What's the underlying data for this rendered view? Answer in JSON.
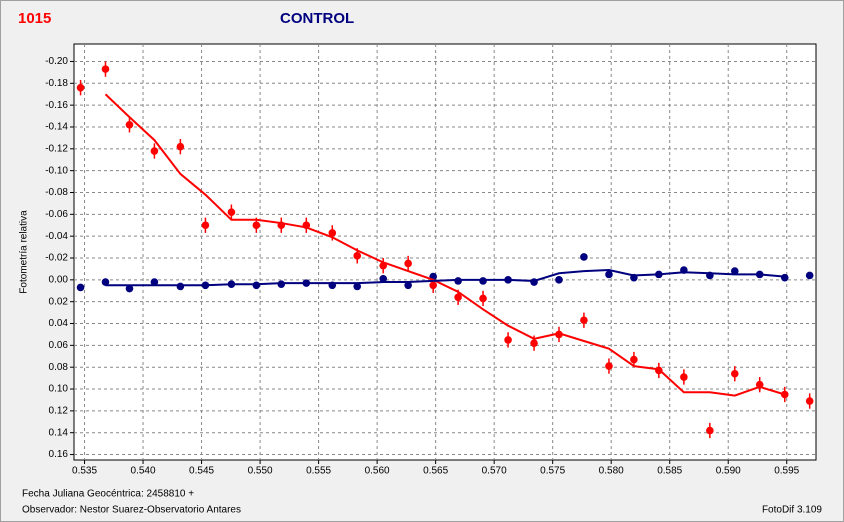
{
  "chart_data": {
    "type": "scatter",
    "title": "CONTROL",
    "id_label": "1015",
    "ylabel": "Fotometría relativa",
    "footer_left_1": "Fecha Juliana Geocéntrica: 2458810 +",
    "footer_left_2": "Observador: Nestor Suarez-Observatorio Antares",
    "footer_right": "FotoDif 3.109",
    "xlim": [
      0.5341,
      0.5975
    ],
    "ylim": [
      0.165,
      -0.216
    ],
    "grid": true,
    "xticks": [
      0.535,
      {
        "value": 0.54,
        "label": "0.540"
      },
      0.545,
      {
        "value": 0.55,
        "label": "0.550"
      },
      0.555,
      {
        "value": 0.56,
        "label": "0.560"
      },
      0.565,
      {
        "value": 0.57,
        "label": "0.570"
      },
      0.575,
      {
        "value": 0.58,
        "label": "0.580"
      },
      0.585,
      {
        "value": 0.59,
        "label": "0.590"
      },
      0.595
    ],
    "yticks": [
      {
        "value": -0.2,
        "label": "-0.20"
      },
      -0.18,
      -0.16,
      -0.14,
      -0.12,
      {
        "value": -0.1,
        "label": "-0.10"
      },
      -0.08,
      -0.06,
      -0.04,
      -0.02,
      {
        "value": 0,
        "label": "0.00"
      },
      0.02,
      0.04,
      0.06,
      0.08,
      {
        "value": 0.1,
        "label": "0.10"
      },
      0.12,
      0.14,
      0.16
    ],
    "x": [
      0.53466,
      0.53679,
      0.53884,
      0.54097,
      0.54319,
      0.54533,
      0.54755,
      0.54968,
      0.55181,
      0.55395,
      0.55617,
      0.5583,
      0.56052,
      0.56265,
      0.56479,
      0.56692,
      0.56905,
      0.57119,
      0.57341,
      0.57554,
      0.57767,
      0.57981,
      0.58194,
      0.58407,
      0.58621,
      0.58843,
      0.59056,
      0.59269,
      0.59483,
      0.59696
    ],
    "series": [
      {
        "mode": "markers",
        "color": "#ff0000",
        "error": 0.007,
        "values": [
          -0.176,
          -0.193,
          -0.142,
          -0.118,
          -0.122,
          -0.05,
          -0.062,
          -0.05,
          -0.05,
          -0.05,
          -0.043,
          -0.022,
          -0.013,
          -0.015,
          0.005,
          0.016,
          0.017,
          0.055,
          0.058,
          0.05,
          0.037,
          0.079,
          0.073,
          0.083,
          0.089,
          0.138,
          0.086,
          0.096,
          0.105,
          0.111
        ]
      },
      {
        "mode": "markers",
        "color": "#00007f",
        "error": 0.003,
        "values": [
          0.007,
          0.002,
          0.008,
          0.002,
          0.006,
          0.005,
          0.004,
          0.005,
          0.004,
          0.003,
          0.005,
          0.006,
          -0.001,
          0.005,
          -0.003,
          0.001,
          0.001,
          0.0,
          0.002,
          0.0,
          -0.021,
          -0.005,
          -0.002,
          -0.005,
          -0.009,
          -0.004,
          -0.008,
          -0.005,
          -0.002,
          -0.004
        ]
      },
      {
        "mode": "line",
        "color": "#ff0000",
        "values": [
          null,
          -0.17,
          -0.149,
          -0.128,
          -0.097,
          -0.078,
          -0.055,
          -0.055,
          -0.052,
          -0.048,
          -0.039,
          -0.027,
          -0.016,
          -0.008,
          0.0,
          0.011,
          0.027,
          0.042,
          0.054,
          0.049,
          0.056,
          0.063,
          0.079,
          0.082,
          0.103,
          0.103,
          0.106,
          0.098,
          0.105,
          null
        ]
      },
      {
        "mode": "line",
        "color": "#00007f",
        "values": [
          null,
          0.005,
          0.005,
          0.005,
          0.005,
          0.005,
          0.004,
          0.004,
          0.003,
          0.003,
          0.003,
          0.003,
          0.002,
          0.002,
          0.001,
          0.0,
          0.0,
          0.0,
          0.001,
          -0.006,
          -0.008,
          -0.009,
          -0.004,
          -0.005,
          -0.007,
          -0.006,
          -0.005,
          -0.005,
          -0.003,
          null
        ]
      }
    ]
  }
}
